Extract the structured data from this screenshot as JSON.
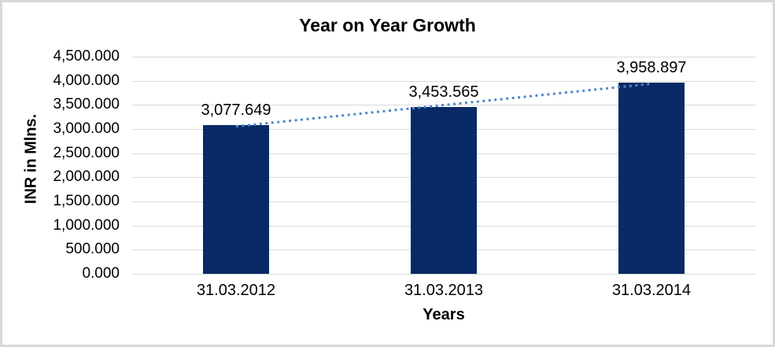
{
  "figure": {
    "background": "#FFFFFF",
    "border_color": "#D8D8D8"
  },
  "chart_data": {
    "type": "bar",
    "title": "Year on Year Growth",
    "categories": [
      "31.03.2012",
      "31.03.2013",
      "31.03.2014"
    ],
    "values": [
      3077.649,
      3453.565,
      3958.897
    ],
    "data_labels": [
      "3,077.649",
      "3,453.565",
      "3,958.897"
    ],
    "xlabel": "Years",
    "ylabel": "INR in Mlns.",
    "ylim": [
      0,
      4500
    ],
    "ytick_step": 500,
    "ytick_labels": [
      "0.000",
      "500.000",
      "1,000.000",
      "1,500.000",
      "2,000.000",
      "2,500.000",
      "3,000.000",
      "3,500.000",
      "4,000.000",
      "4,500.000"
    ],
    "grid": true,
    "legend_position": "none",
    "bar_color": "#092A66",
    "gridline_color": "#D9D9D9",
    "text_color": "#000000",
    "trendline": {
      "type": "linear",
      "style": "dotted",
      "color": "#4F87CB"
    }
  }
}
